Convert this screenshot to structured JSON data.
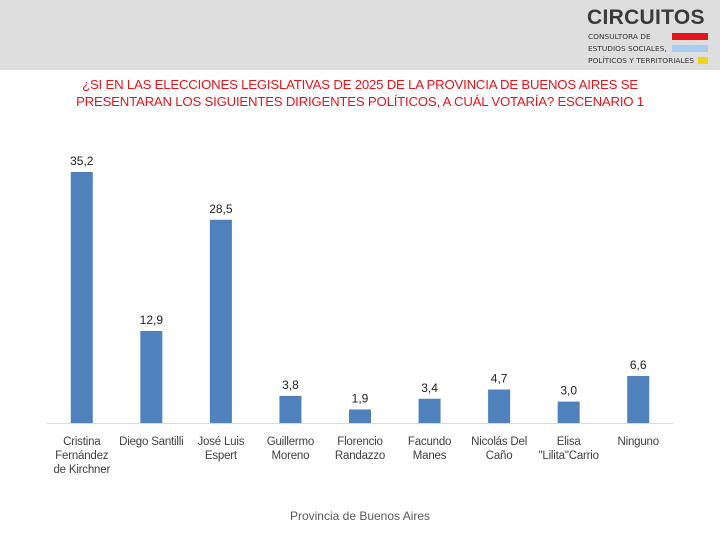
{
  "logo": {
    "name": "CIRCUITOS",
    "lines": [
      "CONSULTORA DE",
      "ESTUDIOS SOCIALES,",
      "POLÍTICOS Y TERRITORIALES"
    ],
    "stripe_colors": [
      "#e8141b",
      "#a9cdee",
      "#f3d21b"
    ]
  },
  "chart_data": {
    "type": "bar",
    "title_lines": [
      "¿SI EN LAS ELECCIONES LEGISLATIVAS DE 2025 DE LA PROVINCIA DE BUENOS AIRES SE",
      "PRESENTARAN LOS SIGUIENTES DIRIGENTES POLÍTICOS, A CUÁL VOTARÍA? ESCENARIO 1"
    ],
    "categories": [
      [
        "Cristina",
        "Fernández",
        "de Kirchner"
      ],
      [
        "Diego Santilli"
      ],
      [
        "José Luis",
        "Espert"
      ],
      [
        "Guillermo",
        "Moreno"
      ],
      [
        "Florencio",
        "Randazzo"
      ],
      [
        "Facundo",
        "Manes"
      ],
      [
        "Nicolás Del",
        "Caño"
      ],
      [
        "Elisa",
        "\"Lilita\"Carrio"
      ],
      [
        "Ninguno"
      ]
    ],
    "values": [
      35.2,
      12.9,
      28.5,
      3.8,
      1.9,
      3.4,
      4.7,
      3.0,
      6.6
    ],
    "value_labels": [
      "35,2",
      "12,9",
      "28,5",
      "3,8",
      "1,9",
      "3,4",
      "4,7",
      "3,0",
      "6,6"
    ],
    "xlabel": "Provincia de Buenos Aires",
    "ylabel": "",
    "ylim": [
      0,
      35.2
    ],
    "grid": false,
    "legend": "none",
    "bar_color": "#4f81bd",
    "title_color": "#e8141b"
  }
}
